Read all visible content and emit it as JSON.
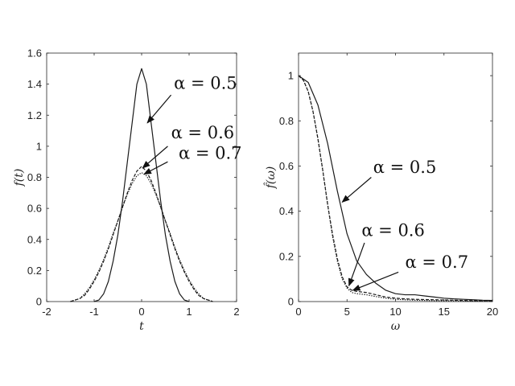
{
  "chart_data": [
    {
      "type": "line",
      "xlabel": "t",
      "ylabel": "f(t)",
      "xlim": [
        -2,
        2
      ],
      "ylim": [
        0,
        1.6
      ],
      "xticks": [
        "-2",
        "-1",
        "0",
        "1",
        "2"
      ],
      "yticks": [
        "0",
        "0.2",
        "0.4",
        "0.6",
        "0.8",
        "1",
        "1.2",
        "1.4",
        "1.6"
      ],
      "grid": false,
      "series": [
        {
          "name": "α = 0.5",
          "style": "solid",
          "x": [
            -1.0,
            -0.9,
            -0.8,
            -0.7,
            -0.6,
            -0.5,
            -0.4,
            -0.3,
            -0.2,
            -0.1,
            0.0,
            0.1,
            0.2,
            0.3,
            0.4,
            0.5,
            0.6,
            0.7,
            0.8,
            0.9,
            1.0
          ],
          "y": [
            0.0,
            0.01,
            0.05,
            0.13,
            0.26,
            0.43,
            0.65,
            0.9,
            1.15,
            1.4,
            1.5,
            1.4,
            1.15,
            0.9,
            0.65,
            0.43,
            0.26,
            0.13,
            0.05,
            0.01,
            0.0
          ]
        },
        {
          "name": "α = 0.6",
          "style": "dashed",
          "x": [
            -1.5,
            -1.4,
            -1.3,
            -1.2,
            -1.1,
            -1.0,
            -0.9,
            -0.8,
            -0.7,
            -0.6,
            -0.5,
            -0.4,
            -0.3,
            -0.2,
            -0.1,
            0.0,
            0.1,
            0.2,
            0.3,
            0.4,
            0.5,
            0.6,
            0.7,
            0.8,
            0.9,
            1.0,
            1.1,
            1.2,
            1.3,
            1.4,
            1.5
          ],
          "y": [
            0.0,
            0.01,
            0.02,
            0.04,
            0.08,
            0.13,
            0.19,
            0.26,
            0.34,
            0.43,
            0.52,
            0.61,
            0.7,
            0.78,
            0.84,
            0.87,
            0.84,
            0.78,
            0.7,
            0.61,
            0.52,
            0.43,
            0.34,
            0.26,
            0.19,
            0.13,
            0.08,
            0.04,
            0.02,
            0.01,
            0.0
          ]
        },
        {
          "name": "α = 0.7",
          "style": "dotted",
          "x": [
            -1.5,
            -1.4,
            -1.3,
            -1.2,
            -1.1,
            -1.0,
            -0.9,
            -0.8,
            -0.7,
            -0.6,
            -0.5,
            -0.4,
            -0.3,
            -0.2,
            -0.1,
            0.0,
            0.1,
            0.2,
            0.3,
            0.4,
            0.5,
            0.6,
            0.7,
            0.8,
            0.9,
            1.0,
            1.1,
            1.2,
            1.3,
            1.4,
            1.5
          ],
          "y": [
            0.0,
            0.01,
            0.02,
            0.05,
            0.09,
            0.14,
            0.2,
            0.27,
            0.35,
            0.44,
            0.52,
            0.61,
            0.69,
            0.76,
            0.81,
            0.83,
            0.81,
            0.76,
            0.69,
            0.61,
            0.52,
            0.44,
            0.35,
            0.27,
            0.2,
            0.14,
            0.09,
            0.05,
            0.02,
            0.01,
            0.0
          ]
        }
      ],
      "annotations": [
        {
          "text": "α = 0.5",
          "text_at": [
            0.68,
            1.37
          ],
          "arrow_from": [
            0.62,
            1.33
          ],
          "arrow_to": [
            0.12,
            1.15
          ]
        },
        {
          "text": "α = 0.6",
          "text_at": [
            0.62,
            1.05
          ],
          "arrow_from": [
            0.55,
            1.0
          ],
          "arrow_to": [
            0.02,
            0.86
          ]
        },
        {
          "text": "α = 0.7",
          "text_at": [
            0.78,
            0.92
          ],
          "arrow_from": [
            0.55,
            0.9
          ],
          "arrow_to": [
            0.05,
            0.82
          ]
        }
      ]
    },
    {
      "type": "line",
      "xlabel": "ω",
      "ylabel": "f̂(ω)",
      "xlim": [
        0,
        20
      ],
      "ylim": [
        0,
        1.1
      ],
      "xticks": [
        "0",
        "5",
        "10",
        "15",
        "20"
      ],
      "yticks": [
        "0",
        "0.2",
        "0.4",
        "0.6",
        "0.8",
        "1"
      ],
      "grid": false,
      "series": [
        {
          "name": "α = 0.5",
          "style": "solid",
          "x": [
            0,
            1,
            2,
            3,
            4,
            5,
            6,
            7,
            8,
            9,
            10,
            11,
            12,
            13,
            14,
            15,
            16,
            17,
            18,
            19,
            20
          ],
          "y": [
            1.0,
            0.97,
            0.87,
            0.7,
            0.49,
            0.3,
            0.18,
            0.12,
            0.08,
            0.05,
            0.035,
            0.03,
            0.03,
            0.025,
            0.02,
            0.015,
            0.012,
            0.01,
            0.008,
            0.006,
            0.005
          ]
        },
        {
          "name": "α = 0.6",
          "style": "dashed",
          "x": [
            0,
            0.5,
            1,
            1.5,
            2,
            2.5,
            3,
            3.5,
            4,
            4.5,
            5,
            5.5,
            6,
            7,
            8,
            9,
            10,
            11,
            12,
            14,
            16,
            18,
            20
          ],
          "y": [
            1.0,
            0.98,
            0.93,
            0.84,
            0.72,
            0.58,
            0.43,
            0.3,
            0.19,
            0.11,
            0.065,
            0.05,
            0.045,
            0.04,
            0.03,
            0.02,
            0.015,
            0.012,
            0.01,
            0.008,
            0.006,
            0.004,
            0.003
          ]
        },
        {
          "name": "α = 0.7",
          "style": "dotted",
          "x": [
            0,
            0.5,
            1,
            1.5,
            2,
            2.5,
            3,
            3.5,
            4,
            4.5,
            5,
            5.5,
            6,
            7,
            8,
            9,
            10,
            11,
            12,
            14,
            16,
            18,
            20
          ],
          "y": [
            1.0,
            0.98,
            0.93,
            0.84,
            0.72,
            0.58,
            0.43,
            0.29,
            0.18,
            0.1,
            0.06,
            0.04,
            0.035,
            0.03,
            0.022,
            0.015,
            0.01,
            0.008,
            0.006,
            0.004,
            0.003,
            0.002,
            0.001
          ]
        }
      ],
      "annotations": [
        {
          "text": "α = 0.5",
          "text_at": [
            7.7,
            0.57
          ],
          "arrow_from": [
            7.5,
            0.55
          ],
          "arrow_to": [
            4.5,
            0.44
          ]
        },
        {
          "text": "α = 0.6",
          "text_at": [
            6.5,
            0.29
          ],
          "arrow_from": [
            6.8,
            0.26
          ],
          "arrow_to": [
            5.2,
            0.07
          ]
        },
        {
          "text": "α = 0.7",
          "text_at": [
            11.0,
            0.15
          ],
          "arrow_from": [
            10.3,
            0.13
          ],
          "arrow_to": [
            5.6,
            0.05
          ]
        }
      ]
    }
  ]
}
